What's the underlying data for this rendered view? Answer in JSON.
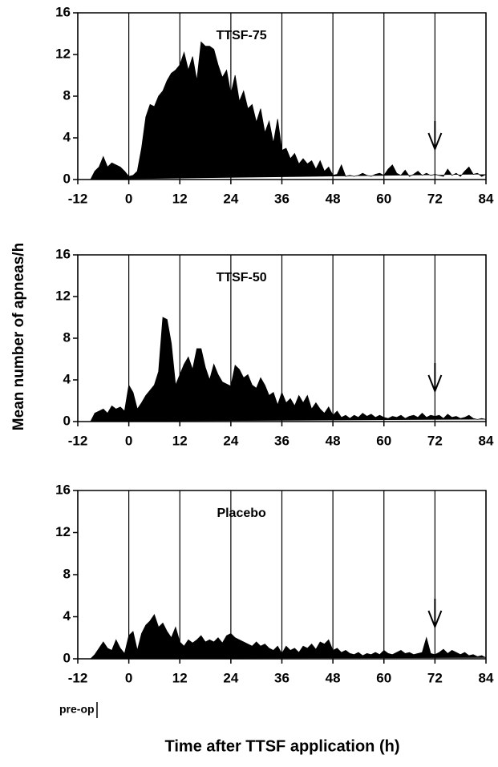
{
  "chart_data": [
    {
      "type": "area",
      "title": "TTSF-75",
      "color": "#000000",
      "x": [
        -9,
        -8,
        -7,
        -6,
        -5,
        -4,
        -3,
        -2,
        -1,
        0,
        1,
        2,
        3,
        4,
        5,
        6,
        7,
        8,
        9,
        10,
        11,
        12,
        13,
        14,
        15,
        16,
        17,
        18,
        19,
        20,
        21,
        22,
        23,
        24,
        25,
        26,
        27,
        28,
        29,
        30,
        31,
        32,
        33,
        34,
        35,
        36,
        37,
        38,
        39,
        40,
        41,
        42,
        43,
        44,
        45,
        46,
        47,
        48,
        49,
        50,
        51,
        52,
        53,
        54,
        55,
        56,
        57,
        58,
        59,
        60,
        61,
        62,
        63,
        64,
        65,
        66,
        67,
        68,
        69,
        70,
        71,
        72,
        73,
        74,
        75,
        76,
        77,
        78,
        79,
        80,
        81,
        82,
        83,
        84
      ],
      "values": [
        0,
        0.8,
        1.2,
        2.2,
        1.2,
        1.6,
        1.4,
        1.2,
        0.8,
        0.3,
        0.4,
        0.8,
        3,
        6,
        7.2,
        7,
        8,
        8.5,
        9.5,
        10.2,
        10.5,
        11,
        12.2,
        10.5,
        11.8,
        9.5,
        13.2,
        12.8,
        12.8,
        12.5,
        11,
        9.8,
        10.5,
        8.2,
        10,
        7.5,
        8.5,
        6.8,
        7.2,
        5.5,
        6.8,
        4.5,
        5.6,
        3.5,
        5.8,
        2.8,
        3,
        2,
        2.5,
        1.5,
        2,
        1.5,
        1.8,
        1,
        1.8,
        0.8,
        1.2,
        0.4,
        0.5,
        1.4,
        0.3,
        0.4,
        0.3,
        0.4,
        0.6,
        0.4,
        0.3,
        0.5,
        0.6,
        0.4,
        1,
        1.4,
        0.6,
        0.4,
        0.9,
        0.3,
        0.5,
        0.8,
        0.4,
        0.6,
        0.4,
        0.5,
        0.4,
        0.3,
        1,
        0.4,
        0.6,
        0.3,
        0.8,
        1.2,
        0.5,
        0.6,
        0.3,
        0.5
      ],
      "xlim": [
        -12,
        84
      ],
      "ylim": [
        0,
        16
      ],
      "xticks": [
        -12,
        0,
        12,
        24,
        36,
        48,
        60,
        72,
        84
      ],
      "yticks": [
        0,
        4,
        8,
        12,
        16
      ],
      "grid": "x",
      "arrow_x": 72
    },
    {
      "type": "area",
      "title": "TTSF-50",
      "color": "#000000",
      "ylabel": "Mean number of apneas/h",
      "x": [
        -9,
        -8,
        -7,
        -6,
        -5,
        -4,
        -3,
        -2,
        -1,
        0,
        1,
        2,
        3,
        4,
        5,
        6,
        7,
        8,
        9,
        10,
        11,
        12,
        13,
        14,
        15,
        16,
        17,
        18,
        19,
        20,
        21,
        22,
        23,
        24,
        25,
        26,
        27,
        28,
        29,
        30,
        31,
        32,
        33,
        34,
        35,
        36,
        37,
        38,
        39,
        40,
        41,
        42,
        43,
        44,
        45,
        46,
        47,
        48,
        49,
        50,
        51,
        52,
        53,
        54,
        55,
        56,
        57,
        58,
        59,
        60,
        61,
        62,
        63,
        64,
        65,
        66,
        67,
        68,
        69,
        70,
        71,
        72,
        73,
        74,
        75,
        76,
        77,
        78,
        79,
        80,
        81,
        82,
        83,
        84
      ],
      "values": [
        0,
        0.8,
        1,
        1.2,
        0.8,
        1.5,
        1.2,
        1.4,
        1,
        3.5,
        2.8,
        1.2,
        1.8,
        2.5,
        3,
        3.5,
        4.8,
        10,
        9.8,
        7.5,
        3.5,
        4.5,
        5.5,
        6.2,
        5,
        7,
        7,
        5.2,
        4,
        5.5,
        4.5,
        3.8,
        3.6,
        3.4,
        5.4,
        5,
        4.2,
        4.5,
        3.5,
        3.2,
        4.2,
        3.5,
        2.5,
        2.8,
        1.6,
        2.8,
        1.8,
        2.2,
        1.5,
        2.5,
        1.8,
        2.5,
        1.2,
        1.8,
        1.2,
        0.8,
        1.4,
        0.6,
        1,
        0.4,
        0.6,
        0.3,
        0.6,
        0.4,
        0.8,
        0.5,
        0.7,
        0.4,
        0.6,
        0.4,
        0.3,
        0.5,
        0.4,
        0.6,
        0.3,
        0.5,
        0.6,
        0.4,
        0.8,
        0.4,
        0.6,
        0.5,
        0.6,
        0.3,
        0.7,
        0.4,
        0.5,
        0.3,
        0.4,
        0.6,
        0.3,
        0.2,
        0.3,
        0.2
      ],
      "xlim": [
        -12,
        84
      ],
      "ylim": [
        0,
        16
      ],
      "xticks": [
        -12,
        0,
        12,
        24,
        36,
        48,
        60,
        72,
        84
      ],
      "yticks": [
        0,
        4,
        8,
        12,
        16
      ],
      "grid": "x",
      "arrow_x": 72
    },
    {
      "type": "area",
      "title": "Placebo",
      "color": "#000000",
      "xlabel": "Time after TTSF application (h)",
      "annotation": "pre-op",
      "x": [
        -9,
        -8,
        -7,
        -6,
        -5,
        -4,
        -3,
        -2,
        -1,
        0,
        1,
        2,
        3,
        4,
        5,
        6,
        7,
        8,
        9,
        10,
        11,
        12,
        13,
        14,
        15,
        16,
        17,
        18,
        19,
        20,
        21,
        22,
        23,
        24,
        25,
        26,
        27,
        28,
        29,
        30,
        31,
        32,
        33,
        34,
        35,
        36,
        37,
        38,
        39,
        40,
        41,
        42,
        43,
        44,
        45,
        46,
        47,
        48,
        49,
        50,
        51,
        52,
        53,
        54,
        55,
        56,
        57,
        58,
        59,
        60,
        61,
        62,
        63,
        64,
        65,
        66,
        67,
        68,
        69,
        70,
        71,
        72,
        73,
        74,
        75,
        76,
        77,
        78,
        79,
        80,
        81,
        82,
        83,
        84
      ],
      "values": [
        0,
        0.4,
        1,
        1.6,
        1,
        0.8,
        1.8,
        1,
        0.5,
        2.2,
        2.6,
        0.8,
        2.4,
        3.2,
        3.6,
        4.2,
        3,
        3.4,
        2.6,
        2,
        3,
        1.6,
        1.2,
        1.8,
        1.5,
        1.8,
        2.2,
        1.6,
        1.8,
        1.6,
        2,
        1.5,
        2.2,
        2.4,
        2,
        1.8,
        1.6,
        1.4,
        1.2,
        1.6,
        1.2,
        1.4,
        1,
        0.8,
        1.2,
        0.5,
        1.2,
        0.8,
        1,
        0.6,
        1.2,
        1,
        1.4,
        0.9,
        1.6,
        1.4,
        1.8,
        0.8,
        1,
        0.6,
        0.8,
        0.5,
        0.4,
        0.6,
        0.3,
        0.5,
        0.4,
        0.6,
        0.4,
        0.8,
        0.5,
        0.4,
        0.6,
        0.8,
        0.5,
        0.6,
        0.4,
        0.5,
        0.6,
        2,
        0.5,
        0.4,
        0.6,
        0.9,
        0.5,
        0.8,
        0.6,
        0.4,
        0.6,
        0.3,
        0.4,
        0.2,
        0.3,
        0.1
      ],
      "xlim": [
        -12,
        84
      ],
      "ylim": [
        0,
        16
      ],
      "xticks": [
        -12,
        0,
        12,
        24,
        36,
        48,
        60,
        72,
        84
      ],
      "yticks": [
        0,
        4,
        8,
        12,
        16
      ],
      "grid": "x",
      "arrow_x": 72
    }
  ]
}
